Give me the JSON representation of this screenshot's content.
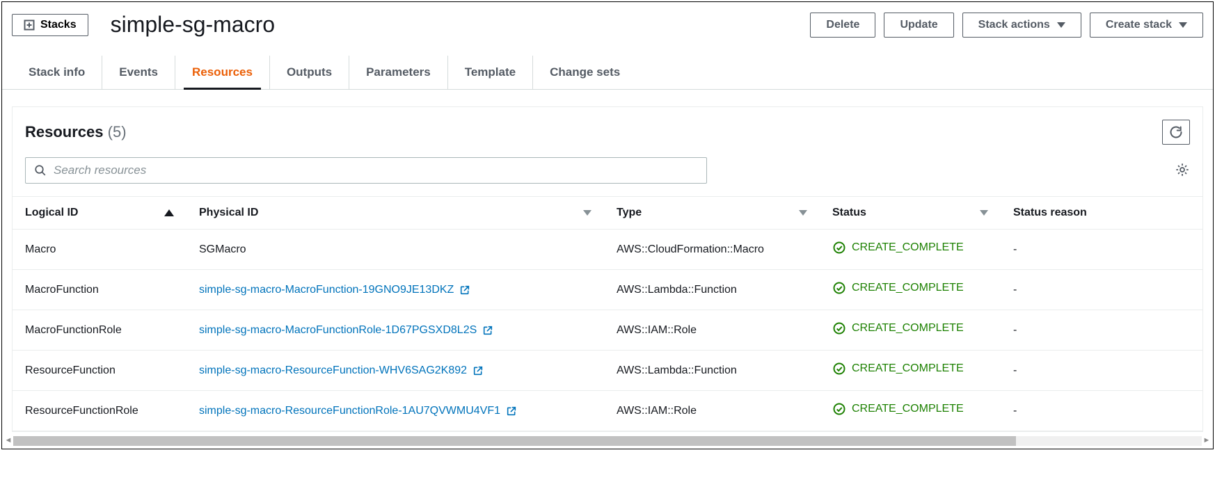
{
  "header": {
    "stacks_button": "Stacks",
    "title": "simple-sg-macro"
  },
  "actions": {
    "delete": "Delete",
    "update": "Update",
    "stack_actions": "Stack actions",
    "create_stack": "Create stack"
  },
  "tabs": [
    {
      "label": "Stack info",
      "active": false
    },
    {
      "label": "Events",
      "active": false
    },
    {
      "label": "Resources",
      "active": true
    },
    {
      "label": "Outputs",
      "active": false
    },
    {
      "label": "Parameters",
      "active": false
    },
    {
      "label": "Template",
      "active": false
    },
    {
      "label": "Change sets",
      "active": false
    }
  ],
  "panel": {
    "title": "Resources",
    "count": "(5)",
    "search_placeholder": "Search resources"
  },
  "columns": {
    "logical_id": "Logical ID",
    "physical_id": "Physical ID",
    "type": "Type",
    "status": "Status",
    "status_reason": "Status reason"
  },
  "rows": [
    {
      "logical": "Macro",
      "physical": "SGMacro",
      "physical_link": false,
      "type": "AWS::CloudFormation::Macro",
      "status": "CREATE_COMPLETE",
      "reason": "-"
    },
    {
      "logical": "MacroFunction",
      "physical": "simple-sg-macro-MacroFunction-19GNO9JE13DKZ",
      "physical_link": true,
      "type": "AWS::Lambda::Function",
      "status": "CREATE_COMPLETE",
      "reason": "-"
    },
    {
      "logical": "MacroFunctionRole",
      "physical": "simple-sg-macro-MacroFunctionRole-1D67PGSXD8L2S",
      "physical_link": true,
      "type": "AWS::IAM::Role",
      "status": "CREATE_COMPLETE",
      "reason": "-"
    },
    {
      "logical": "ResourceFunction",
      "physical": "simple-sg-macro-ResourceFunction-WHV6SAG2K892",
      "physical_link": true,
      "type": "AWS::Lambda::Function",
      "status": "CREATE_COMPLETE",
      "reason": "-"
    },
    {
      "logical": "ResourceFunctionRole",
      "physical": "simple-sg-macro-ResourceFunctionRole-1AU7QVWMU4VF1",
      "physical_link": true,
      "type": "AWS::IAM::Role",
      "status": "CREATE_COMPLETE",
      "reason": "-"
    }
  ],
  "colors": {
    "accent": "#eb5f07",
    "link": "#0073bb",
    "success": "#1d8102",
    "border": "#eaeded",
    "text_muted": "#545b64"
  }
}
